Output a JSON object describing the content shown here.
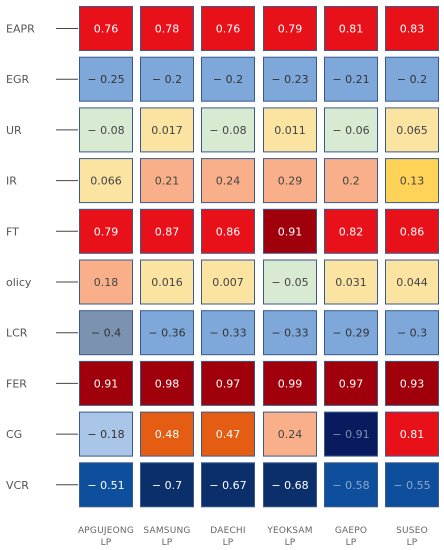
{
  "chart_data": {
    "type": "heatmap",
    "rows": [
      "EAPR",
      "EGR",
      "UR",
      "IR",
      "FT",
      "olicy",
      "LCR",
      "FER",
      "CG",
      "VCR"
    ],
    "columns": [
      [
        "APGUJEONG",
        "LP"
      ],
      [
        "SAMSUNG",
        "LP"
      ],
      [
        "DAECHI",
        "LP"
      ],
      [
        "YEOKSAM",
        "LP"
      ],
      [
        "GAEPO",
        "LP"
      ],
      [
        "SUSEO",
        "LP"
      ]
    ],
    "values": [
      [
        0.76,
        0.78,
        0.76,
        0.79,
        0.81,
        0.83
      ],
      [
        -0.25,
        -0.2,
        -0.2,
        -0.23,
        -0.21,
        -0.2
      ],
      [
        -0.08,
        0.017,
        -0.08,
        0.011,
        -0.06,
        0.065
      ],
      [
        0.066,
        0.21,
        0.24,
        0.29,
        0.2,
        0.13
      ],
      [
        0.79,
        0.87,
        0.86,
        0.91,
        0.82,
        0.86
      ],
      [
        0.18,
        0.016,
        0.007,
        -0.05,
        0.031,
        0.044
      ],
      [
        -0.4,
        -0.36,
        -0.33,
        -0.33,
        -0.29,
        -0.3
      ],
      [
        0.91,
        0.98,
        0.97,
        0.99,
        0.97,
        0.93
      ],
      [
        -0.18,
        0.48,
        0.47,
        0.24,
        -0.91,
        0.81
      ],
      [
        -0.51,
        -0.7,
        -0.67,
        -0.68,
        -0.58,
        -0.55
      ]
    ],
    "labels": [
      [
        "0.76",
        "0.78",
        "0.76",
        "0.79",
        "0.81",
        "0.83"
      ],
      [
        "− 0.25",
        "− 0.2",
        "− 0.2",
        "− 0.23",
        "− 0.21",
        "− 0.2"
      ],
      [
        "− 0.08",
        "0.017",
        "− 0.08",
        "0.011",
        "− 0.06",
        "0.065"
      ],
      [
        "0.066",
        "0.21",
        "0.24",
        "0.29",
        "0.2",
        "0.13"
      ],
      [
        "0.79",
        "0.87",
        "0.86",
        "0.91",
        "0.82",
        "0.86"
      ],
      [
        "0.18",
        "0.016",
        "0.007",
        "− 0.05",
        "0.031",
        "0.044"
      ],
      [
        "− 0.4",
        "− 0.36",
        "− 0.33",
        "− 0.33",
        "− 0.29",
        "− 0.3"
      ],
      [
        "0.91",
        "0.98",
        "0.97",
        "0.99",
        "0.97",
        "0.93"
      ],
      [
        "− 0.18",
        "0.48",
        "0.47",
        "0.24",
        "− 0.91",
        "0.81"
      ],
      [
        "− 0.51",
        "− 0.7",
        "− 0.67",
        "− 0.68",
        "− 0.58",
        "− 0.55"
      ]
    ],
    "cell_colors": [
      [
        "#e8111a",
        "#e8111a",
        "#e8111a",
        "#e8111a",
        "#e8111a",
        "#e8111a"
      ],
      [
        "#7fa8da",
        "#7fa8da",
        "#7fa8da",
        "#7fa8da",
        "#7fa8da",
        "#7fa8da"
      ],
      [
        "#d9ead3",
        "#fbe3a1",
        "#d9ead3",
        "#fbe3a1",
        "#d9ead3",
        "#fbe3a1"
      ],
      [
        "#fbe3a1",
        "#f9b08a",
        "#f9b08a",
        "#f9b08a",
        "#f9b08a",
        "#fed357"
      ],
      [
        "#e8111a",
        "#e8111a",
        "#e8111a",
        "#a0000b",
        "#e8111a",
        "#e8111a"
      ],
      [
        "#f9b08a",
        "#fbe3a1",
        "#fbe3a1",
        "#d9ead3",
        "#fbe3a1",
        "#fbe3a1"
      ],
      [
        "#7b93b0",
        "#7fa8da",
        "#7fa8da",
        "#7fa8da",
        "#7fa8da",
        "#7fa8da"
      ],
      [
        "#a0000b",
        "#a0000b",
        "#a0000b",
        "#a0000b",
        "#a0000b",
        "#a0000b"
      ],
      [
        "#a9c6e8",
        "#e45d12",
        "#e45d12",
        "#f9b08a",
        "#0a1a5e",
        "#e8111a"
      ],
      [
        "#0d4f9c",
        "#0a2f6b",
        "#0a2f6b",
        "#0a2f6b",
        "#0d4f9c",
        "#0d4f9c"
      ]
    ],
    "text_colors": [
      [
        "#ffffff",
        "#ffffff",
        "#ffffff",
        "#ffffff",
        "#ffffff",
        "#ffffff"
      ],
      [
        "#333333",
        "#333333",
        "#333333",
        "#333333",
        "#333333",
        "#333333"
      ],
      [
        "#444444",
        "#444444",
        "#444444",
        "#444444",
        "#444444",
        "#444444"
      ],
      [
        "#444444",
        "#444444",
        "#444444",
        "#444444",
        "#444444",
        "#444444"
      ],
      [
        "#ffffff",
        "#ffffff",
        "#ffffff",
        "#ffffff",
        "#ffffff",
        "#ffffff"
      ],
      [
        "#444444",
        "#444444",
        "#444444",
        "#444444",
        "#444444",
        "#444444"
      ],
      [
        "#333333",
        "#333333",
        "#333333",
        "#333333",
        "#333333",
        "#333333"
      ],
      [
        "#ffffff",
        "#ffffff",
        "#ffffff",
        "#ffffff",
        "#ffffff",
        "#ffffff"
      ],
      [
        "#333333",
        "#ffffff",
        "#ffffff",
        "#444444",
        "#7d8fb3",
        "#ffffff"
      ],
      [
        "#ffffff",
        "#ffffff",
        "#ffffff",
        "#ffffff",
        "#8ea6c8",
        "#8ea6c8"
      ]
    ],
    "cell_border_color": "#3a5a8c"
  }
}
